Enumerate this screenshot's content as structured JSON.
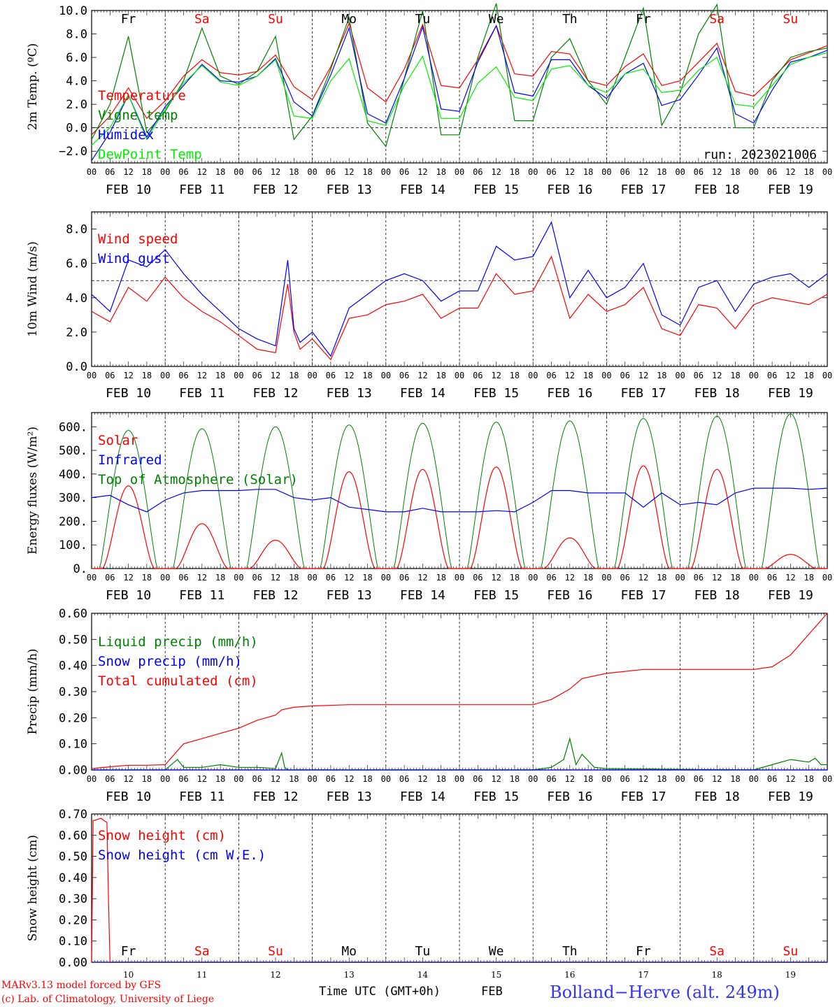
{
  "colors": {
    "red": "#ff0000",
    "green": "#008000",
    "blue": "#0000ff",
    "lime": "#00ee00",
    "black": "#000000"
  },
  "days": {
    "labels": [
      "Fr",
      "Sa",
      "Su",
      "Mo",
      "Tu",
      "We",
      "Th",
      "Fr",
      "Sa",
      "Su"
    ],
    "colors": [
      "#000000",
      "#ff0000",
      "#ff0000",
      "#000000",
      "#000000",
      "#000000",
      "#000000",
      "#000000",
      "#ff0000",
      "#ff0000"
    ],
    "dates": [
      "FEB 10",
      "FEB 11",
      "FEB 12",
      "FEB 13",
      "FEB 14",
      "FEB 15",
      "FEB 16",
      "FEB 17",
      "FEB 18",
      "FEB 19"
    ],
    "numbers": [
      "10",
      "11",
      "12",
      "13",
      "14",
      "15",
      "16",
      "17",
      "18",
      "19"
    ],
    "hour_ticks": [
      "00",
      "06",
      "12",
      "18"
    ],
    "end_tick": "00"
  },
  "footer": {
    "model": "MARv3.13 model forced by GFS",
    "copyright": "(c) Lab. of Climatology, University of Liege",
    "time_label": "Time UTC (GMT+0h)",
    "month": "FEB",
    "station": "Bolland−Herve (alt. 249m)"
  },
  "chart_data": [
    {
      "type": "line",
      "ylabel": "2m Temp. (ºC)",
      "ylim": [
        -3,
        10
      ],
      "yticks": [
        "−2.0",
        "0.0",
        "2.0",
        "4.0",
        "6.0",
        "8.0",
        "10.0"
      ],
      "ref_line": 0,
      "x_unit": "hours from FEB 10 00 UTC",
      "annotation": "run: 2023021006",
      "legend": [
        "Temperature",
        "Vigne temp",
        "Humidex",
        "DewPoint Temp"
      ],
      "series": [
        {
          "name": "Temperature",
          "color": "red",
          "x": [
            0,
            6,
            12,
            18,
            24,
            30,
            36,
            42,
            48,
            54,
            60,
            66,
            72,
            78,
            84,
            90,
            96,
            102,
            108,
            114,
            120,
            126,
            132,
            138,
            144,
            150,
            156,
            162,
            168,
            174,
            180,
            186,
            192,
            198,
            204,
            210,
            216,
            222,
            228,
            234,
            240
          ],
          "y": [
            -0.6,
            1.0,
            3.4,
            0.8,
            2.3,
            4.4,
            5.8,
            4.7,
            4.5,
            4.8,
            6.2,
            3.5,
            2.4,
            5.2,
            8.9,
            3.4,
            2.2,
            5.0,
            8.8,
            3.6,
            3.4,
            5.8,
            8.7,
            4.6,
            4.4,
            6.5,
            6.3,
            4.0,
            3.6,
            5.2,
            6.3,
            3.6,
            4.0,
            5.6,
            7.2,
            3.1,
            2.7,
            4.2,
            5.8,
            6.4,
            7.0
          ]
        },
        {
          "name": "Vigne temp",
          "color": "green",
          "x": [
            0,
            6,
            12,
            18,
            24,
            30,
            36,
            42,
            48,
            54,
            60,
            66,
            72,
            78,
            84,
            90,
            96,
            102,
            108,
            114,
            120,
            126,
            132,
            138,
            144,
            150,
            156,
            162,
            168,
            174,
            180,
            186,
            192,
            198,
            204,
            210,
            216,
            222,
            228,
            234,
            240
          ],
          "y": [
            -1.0,
            2.0,
            7.8,
            -0.4,
            1.4,
            4.0,
            8.5,
            4.4,
            3.7,
            4.8,
            7.8,
            -1.0,
            1.0,
            5.0,
            9.4,
            0.4,
            -1.6,
            4.2,
            10.0,
            -0.6,
            -0.6,
            6.0,
            10.6,
            0.6,
            0.6,
            6.0,
            7.6,
            4.0,
            2.0,
            6.0,
            10.2,
            0.2,
            3.0,
            8.0,
            10.5,
            0.0,
            0.0,
            4.0,
            6.0,
            6.5,
            6.8
          ]
        },
        {
          "name": "Humidex",
          "color": "blue",
          "x": [
            0,
            6,
            12,
            18,
            24,
            30,
            36,
            42,
            48,
            54,
            60,
            66,
            72,
            78,
            84,
            90,
            96,
            102,
            108,
            114,
            120,
            126,
            132,
            138,
            144,
            150,
            156,
            162,
            168,
            174,
            180,
            186,
            192,
            198,
            204,
            210,
            216,
            222,
            228,
            234,
            240
          ],
          "y": [
            -2.8,
            -0.4,
            2.8,
            -0.8,
            1.8,
            3.6,
            5.4,
            4.0,
            3.9,
            4.4,
            5.9,
            2.2,
            1.0,
            4.5,
            8.5,
            1.2,
            0.4,
            4.2,
            8.6,
            1.6,
            1.4,
            5.6,
            8.7,
            3.0,
            2.7,
            5.8,
            5.8,
            3.6,
            2.5,
            4.6,
            5.5,
            1.9,
            2.4,
            4.5,
            6.8,
            1.2,
            0.4,
            3.2,
            5.6,
            6.0,
            6.6
          ]
        },
        {
          "name": "DewPoint Temp",
          "color": "lime",
          "x": [
            0,
            6,
            12,
            18,
            24,
            30,
            36,
            42,
            48,
            54,
            60,
            66,
            72,
            78,
            84,
            90,
            96,
            102,
            108,
            114,
            120,
            126,
            132,
            138,
            144,
            150,
            156,
            162,
            168,
            174,
            180,
            186,
            192,
            198,
            204,
            210,
            216,
            222,
            228,
            234,
            240
          ],
          "y": [
            -1.5,
            0.0,
            2.8,
            -1.0,
            1.6,
            3.8,
            5.3,
            3.9,
            3.6,
            4.4,
            5.8,
            1.0,
            0.8,
            4.0,
            5.9,
            0.6,
            0.2,
            3.6,
            6.1,
            0.8,
            0.8,
            3.8,
            5.2,
            2.6,
            2.3,
            5.0,
            5.3,
            3.6,
            3.0,
            4.6,
            5.0,
            3.0,
            3.2,
            4.9,
            6.0,
            2.0,
            1.8,
            3.6,
            5.4,
            6.0,
            6.4
          ]
        }
      ]
    },
    {
      "type": "line",
      "ylabel": "10m Wind (m/s)",
      "ylim": [
        0,
        9
      ],
      "yticks": [
        "0.0",
        "2.0",
        "4.0",
        "6.0",
        "8.0"
      ],
      "ref_line": 5,
      "x_unit": "hours from FEB 10 00 UTC",
      "legend": [
        "Wind speed",
        "Wind gust"
      ],
      "series": [
        {
          "name": "Wind speed",
          "color": "red",
          "x": [
            0,
            6,
            12,
            18,
            24,
            30,
            36,
            42,
            48,
            54,
            60,
            64,
            66,
            68,
            72,
            78,
            84,
            90,
            96,
            102,
            108,
            114,
            120,
            126,
            132,
            138,
            144,
            150,
            156,
            162,
            168,
            174,
            180,
            186,
            192,
            198,
            204,
            210,
            216,
            222,
            228,
            234,
            240
          ],
          "y": [
            3.2,
            2.6,
            4.6,
            3.8,
            5.2,
            4.0,
            3.2,
            2.6,
            1.8,
            1.0,
            0.8,
            4.8,
            2.0,
            1.0,
            1.6,
            0.4,
            2.8,
            3.0,
            3.6,
            3.8,
            4.2,
            2.8,
            3.4,
            3.4,
            5.4,
            4.2,
            4.4,
            6.4,
            2.8,
            4.2,
            3.2,
            3.6,
            4.6,
            2.2,
            1.8,
            3.6,
            3.4,
            2.2,
            3.6,
            4.0,
            3.8,
            3.6,
            4.2
          ]
        },
        {
          "name": "Wind gust",
          "color": "blue",
          "x": [
            0,
            6,
            12,
            18,
            24,
            30,
            36,
            42,
            48,
            54,
            60,
            64,
            66,
            68,
            72,
            78,
            84,
            90,
            96,
            102,
            108,
            114,
            120,
            126,
            132,
            138,
            144,
            150,
            156,
            162,
            168,
            174,
            180,
            186,
            192,
            198,
            204,
            210,
            216,
            222,
            228,
            234,
            240
          ],
          "y": [
            4.2,
            3.2,
            6.2,
            5.8,
            6.8,
            5.4,
            4.2,
            3.2,
            2.2,
            1.6,
            1.2,
            6.2,
            2.2,
            1.4,
            2.0,
            0.6,
            3.4,
            4.2,
            5.0,
            5.4,
            5.0,
            3.8,
            4.4,
            4.4,
            7.0,
            6.2,
            6.4,
            8.4,
            4.0,
            5.6,
            4.0,
            4.6,
            6.0,
            3.0,
            2.4,
            4.6,
            5.0,
            3.2,
            4.8,
            5.2,
            5.4,
            4.6,
            5.4
          ]
        }
      ]
    },
    {
      "type": "line",
      "ylabel": "Energy fluxes (W/m²)",
      "ylim": [
        0,
        660
      ],
      "yticks": [
        "0.",
        "100.",
        "200.",
        "300.",
        "400.",
        "500.",
        "600."
      ],
      "x_unit": "hours from FEB 10 00 UTC",
      "legend": [
        "Solar",
        "Infrared",
        "Top of Atmosphere (Solar)"
      ],
      "day_peaks": {
        "noon_hours": [
          12,
          36,
          60,
          84,
          108,
          132,
          156,
          180,
          204,
          228
        ],
        "toa": [
          585,
          592,
          600,
          608,
          615,
          620,
          625,
          635,
          645,
          655
        ],
        "solar": [
          350,
          190,
          120,
          410,
          420,
          430,
          130,
          435,
          420,
          60
        ]
      },
      "series": [
        {
          "name": "Infrared",
          "color": "blue",
          "x": [
            0,
            6,
            12,
            18,
            24,
            30,
            36,
            42,
            48,
            54,
            60,
            66,
            72,
            78,
            84,
            90,
            96,
            102,
            108,
            114,
            120,
            126,
            132,
            138,
            144,
            150,
            156,
            162,
            168,
            174,
            180,
            186,
            192,
            198,
            204,
            210,
            216,
            222,
            228,
            234,
            240
          ],
          "y": [
            300,
            310,
            270,
            240,
            290,
            320,
            330,
            330,
            330,
            335,
            335,
            300,
            290,
            300,
            260,
            250,
            240,
            240,
            255,
            240,
            240,
            240,
            245,
            240,
            280,
            330,
            330,
            320,
            320,
            320,
            260,
            320,
            270,
            280,
            270,
            320,
            340,
            340,
            340,
            335,
            340
          ]
        }
      ]
    },
    {
      "type": "line",
      "ylabel": "Precip (mm/h)",
      "ylim": [
        0,
        0.6
      ],
      "yticks": [
        "0.00",
        "0.10",
        "0.20",
        "0.30",
        "0.40",
        "0.50",
        "0.60"
      ],
      "x_unit": "hours from FEB 10 00 UTC",
      "legend": [
        "Liquid precip (mm/h)",
        "Snow precip (mm/h)",
        "Total cumulated (cm)"
      ],
      "series": [
        {
          "name": "Total cumulated (cm)",
          "color": "red",
          "x": [
            0,
            6,
            12,
            18,
            24,
            30,
            36,
            42,
            48,
            54,
            60,
            62,
            66,
            72,
            84,
            96,
            108,
            120,
            132,
            144,
            150,
            156,
            160,
            168,
            180,
            192,
            204,
            216,
            222,
            228,
            234,
            240
          ],
          "y": [
            0.005,
            0.012,
            0.018,
            0.018,
            0.02,
            0.1,
            0.12,
            0.14,
            0.16,
            0.19,
            0.21,
            0.23,
            0.24,
            0.245,
            0.25,
            0.25,
            0.25,
            0.25,
            0.25,
            0.25,
            0.27,
            0.31,
            0.35,
            0.37,
            0.385,
            0.385,
            0.385,
            0.385,
            0.395,
            0.44,
            0.52,
            0.6
          ]
        },
        {
          "name": "Liquid precip (mm/h)",
          "color": "green",
          "x": [
            0,
            24,
            28,
            30,
            36,
            42,
            48,
            54,
            60,
            62,
            63,
            64,
            72,
            84,
            96,
            120,
            144,
            150,
            154,
            156,
            158,
            160,
            164,
            168,
            216,
            222,
            228,
            234,
            236,
            238,
            240
          ],
          "y": [
            0,
            0,
            0.04,
            0.01,
            0.01,
            0.02,
            0.01,
            0.01,
            0.005,
            0.065,
            0.01,
            0.0,
            0.0,
            0.0,
            0.0,
            0.0,
            0.0,
            0.01,
            0.04,
            0.12,
            0.02,
            0.06,
            0.01,
            0.005,
            0.0,
            0.02,
            0.04,
            0.03,
            0.045,
            0.02,
            0.02
          ]
        },
        {
          "name": "Snow precip (mm/h)",
          "color": "blue",
          "x": [
            0,
            240
          ],
          "y": [
            0,
            0
          ]
        }
      ]
    },
    {
      "type": "line",
      "ylabel": "Snow height (cm)",
      "ylim": [
        0,
        0.7
      ],
      "yticks": [
        "0.00",
        "0.10",
        "0.20",
        "0.30",
        "0.40",
        "0.50",
        "0.60",
        "0.70"
      ],
      "x_unit": "hours from FEB 10 00 UTC",
      "legend": [
        "Snow height (cm)",
        "Snow height (cm W.E.)"
      ],
      "series": [
        {
          "name": "Snow height (cm)",
          "color": "red",
          "x": [
            0,
            0.5,
            1,
            3,
            4,
            5,
            5.5,
            6,
            240
          ],
          "y": [
            0,
            0.67,
            0.67,
            0.68,
            0.67,
            0.66,
            0.3,
            0,
            0
          ]
        },
        {
          "name": "Snow height (cm W.E.)",
          "color": "blue",
          "x": [
            0,
            240
          ],
          "y": [
            0,
            0
          ]
        }
      ]
    }
  ]
}
